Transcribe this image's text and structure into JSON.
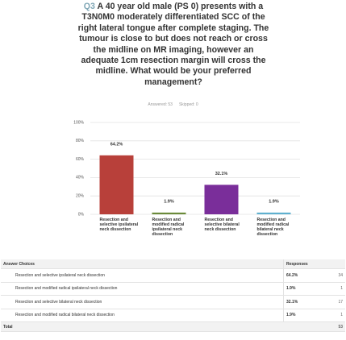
{
  "question_number": "Q3",
  "chart_data": {
    "type": "bar",
    "title": "A 40 year old male (PS 0) presents with a T3N0M0 moderately differentiated SCC of the right lateral tongue after complete staging. The tumour is close to but does not reach or cross the midline on MR imaging, however an adequate 1cm resection margin will cross the midline. What would be your preferred management?",
    "answered": "Answered: 53",
    "skipped": "Skipped: 0",
    "categories": [
      "Resection and selective ipsilateral neck dissection",
      "Resection and modified radical ipsilateral neck dissection",
      "Resection and selective bilateral neck dissection",
      "Resection and modified radical bilateral neck dissection"
    ],
    "values": [
      64.2,
      1.9,
      32.1,
      1.9
    ],
    "value_labels": [
      "64.2%",
      "1.9%",
      "32.1%",
      "1.9%"
    ],
    "colors": [
      "#b8403a",
      "#6b8a3a",
      "#7a2e9a",
      "#5fb0cf"
    ],
    "ylim": [
      0,
      100
    ],
    "yticks": [
      {
        "value": 0,
        "label": "0%"
      },
      {
        "value": 20,
        "label": "20%"
      },
      {
        "value": 40,
        "label": "40%"
      },
      {
        "value": 60,
        "label": "60%"
      },
      {
        "value": 80,
        "label": "80%"
      },
      {
        "value": 100,
        "label": "100%"
      }
    ],
    "grid": true
  },
  "table": {
    "headers": [
      "Answer Choices",
      "Responses"
    ],
    "rows": [
      [
        "Resection and selective ipsilateral neck dissection",
        "64.2%",
        34
      ],
      [
        "Resection and modified radical ipsilateral neck dissection",
        "1.9%",
        1
      ],
      [
        "Resection and selective bilateral neck dissection",
        "32.1%",
        17
      ],
      [
        "Resection and modified radical bilateral neck dissection",
        "1.9%",
        1
      ]
    ],
    "total": [
      "Total",
      53
    ]
  }
}
